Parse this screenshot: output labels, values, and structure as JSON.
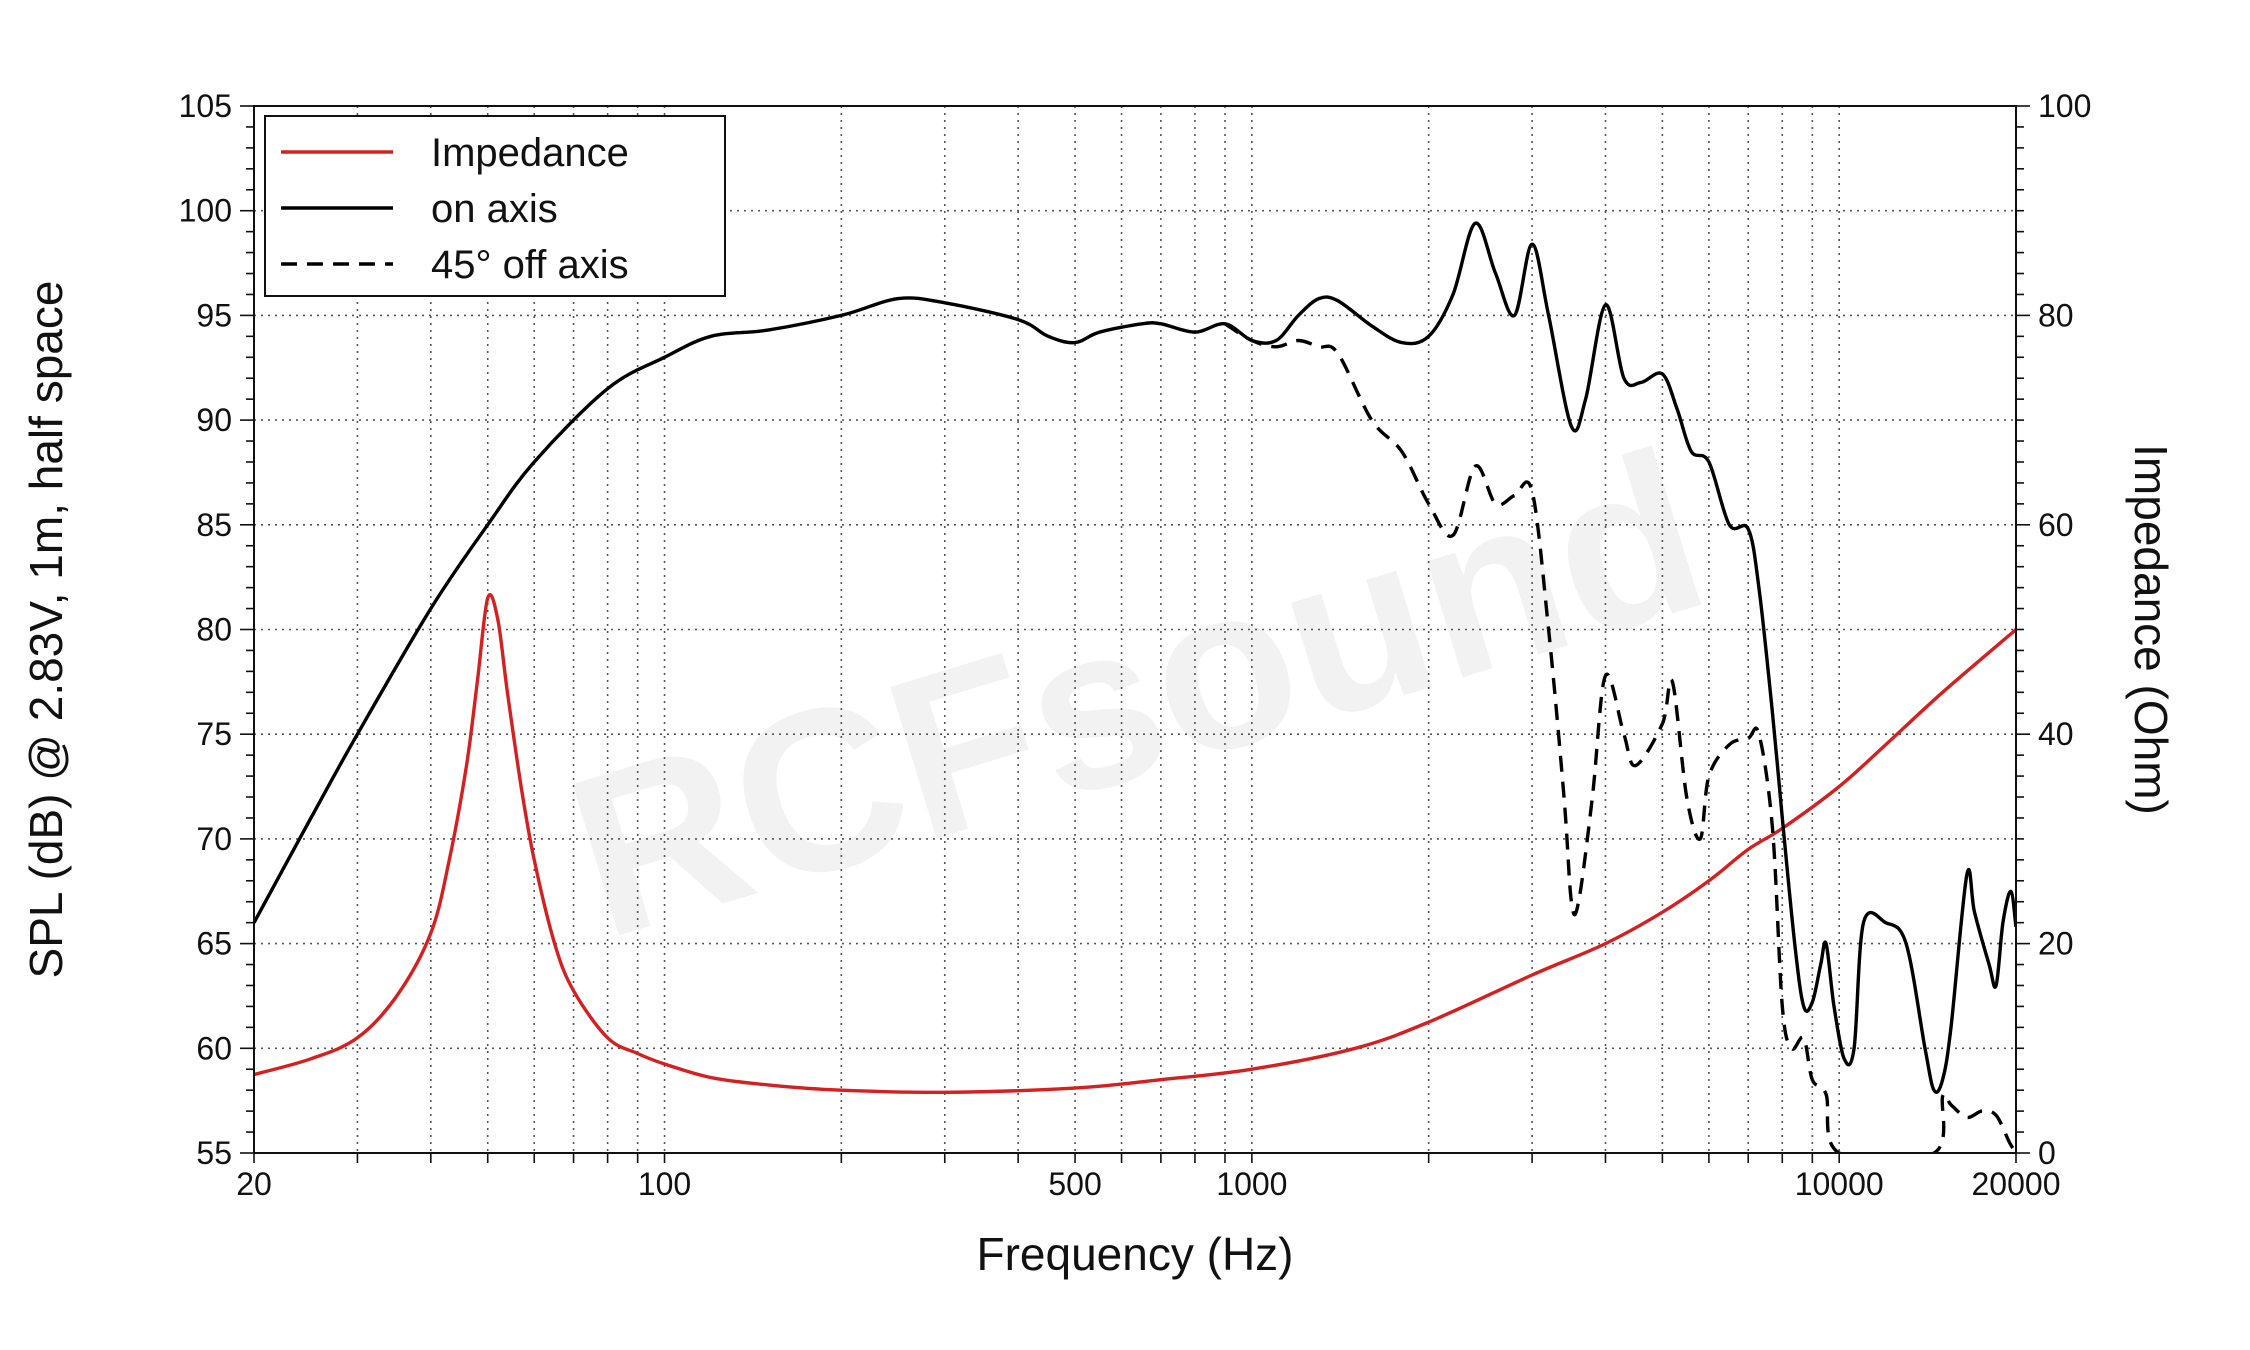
{
  "chart_data": {
    "type": "line",
    "xlabel": "Frequency (Hz)",
    "ylabel_left": "SPL (dB) @ 2.83V, 1m, half space",
    "ylabel_right": "Impedance (Ohm)",
    "xscale": "log",
    "xlim": [
      20,
      20000
    ],
    "ylim_left": [
      55,
      105
    ],
    "ylim_right": [
      0,
      100
    ],
    "x_tick_labels": [
      "20",
      "100",
      "500",
      "1000",
      "10000",
      "20000"
    ],
    "y_left_tick_labels": [
      "55",
      "60",
      "65",
      "70",
      "75",
      "80",
      "85",
      "90",
      "95",
      "100",
      "105"
    ],
    "y_right_tick_labels": [
      "0",
      "20",
      "40",
      "60",
      "80",
      "100"
    ],
    "grid": true,
    "legend_position": "top-left",
    "watermark": "RCFsound",
    "series": [
      {
        "name": "Impedance",
        "axis": "right",
        "color": "#d42020",
        "style": "solid",
        "points": [
          [
            20,
            7.5
          ],
          [
            25,
            9
          ],
          [
            30,
            11
          ],
          [
            35,
            15
          ],
          [
            40,
            21
          ],
          [
            43,
            28
          ],
          [
            46,
            37
          ],
          [
            48,
            45
          ],
          [
            50,
            53
          ],
          [
            52,
            51
          ],
          [
            54,
            44
          ],
          [
            57,
            35
          ],
          [
            60,
            28
          ],
          [
            65,
            20
          ],
          [
            70,
            15.5
          ],
          [
            80,
            11
          ],
          [
            90,
            9.5
          ],
          [
            100,
            8.5
          ],
          [
            120,
            7.2
          ],
          [
            150,
            6.5
          ],
          [
            200,
            6
          ],
          [
            300,
            5.8
          ],
          [
            500,
            6.2
          ],
          [
            700,
            7
          ],
          [
            1000,
            8
          ],
          [
            1500,
            10
          ],
          [
            2000,
            12.5
          ],
          [
            3000,
            17
          ],
          [
            4000,
            20
          ],
          [
            5000,
            23
          ],
          [
            6000,
            26
          ],
          [
            7000,
            29
          ],
          [
            8000,
            31
          ],
          [
            10000,
            35
          ],
          [
            12000,
            39
          ],
          [
            15000,
            44
          ],
          [
            20000,
            50
          ]
        ]
      },
      {
        "name": "on axis",
        "axis": "left",
        "color": "#000000",
        "style": "solid",
        "points": [
          [
            20,
            66
          ],
          [
            25,
            71
          ],
          [
            30,
            75
          ],
          [
            40,
            81
          ],
          [
            50,
            85
          ],
          [
            60,
            88
          ],
          [
            80,
            91.5
          ],
          [
            100,
            93
          ],
          [
            120,
            94
          ],
          [
            150,
            94.3
          ],
          [
            200,
            95
          ],
          [
            250,
            95.8
          ],
          [
            300,
            95.6
          ],
          [
            400,
            94.8
          ],
          [
            450,
            94
          ],
          [
            500,
            93.7
          ],
          [
            550,
            94.2
          ],
          [
            650,
            94.6
          ],
          [
            700,
            94.6
          ],
          [
            800,
            94.2
          ],
          [
            900,
            94.6
          ],
          [
            1000,
            93.8
          ],
          [
            1100,
            93.8
          ],
          [
            1200,
            95
          ],
          [
            1300,
            95.8
          ],
          [
            1400,
            95.7
          ],
          [
            1600,
            94.5
          ],
          [
            1800,
            93.7
          ],
          [
            2000,
            94
          ],
          [
            2200,
            96
          ],
          [
            2400,
            99.4
          ],
          [
            2600,
            97
          ],
          [
            2800,
            95
          ],
          [
            3000,
            98.4
          ],
          [
            3200,
            95
          ],
          [
            3500,
            89.7
          ],
          [
            3700,
            91
          ],
          [
            4000,
            95.5
          ],
          [
            4300,
            92
          ],
          [
            4600,
            91.8
          ],
          [
            5000,
            92.2
          ],
          [
            5300,
            90.5
          ],
          [
            5600,
            88.5
          ],
          [
            6000,
            88
          ],
          [
            6500,
            85
          ],
          [
            7000,
            84.8
          ],
          [
            7300,
            82
          ],
          [
            7700,
            76
          ],
          [
            8000,
            71
          ],
          [
            8400,
            65
          ],
          [
            8700,
            62
          ],
          [
            9000,
            62.2
          ],
          [
            9300,
            64
          ],
          [
            9500,
            65
          ],
          [
            9800,
            62
          ],
          [
            10200,
            59.5
          ],
          [
            10600,
            60
          ],
          [
            11000,
            66
          ],
          [
            12000,
            66
          ],
          [
            13000,
            65
          ],
          [
            14000,
            60
          ],
          [
            14500,
            58
          ],
          [
            15000,
            58.5
          ],
          [
            15500,
            61
          ],
          [
            16500,
            68.3
          ],
          [
            17000,
            66.5
          ],
          [
            18000,
            64
          ],
          [
            18500,
            63
          ],
          [
            19000,
            66
          ],
          [
            19600,
            67.5
          ],
          [
            20000,
            65.8
          ]
        ]
      },
      {
        "name": "45° off axis",
        "axis": "left",
        "color": "#000000",
        "style": "dashed",
        "points": [
          [
            900,
            94.6
          ],
          [
            1000,
            93.8
          ],
          [
            1100,
            93.5
          ],
          [
            1200,
            93.8
          ],
          [
            1300,
            93.5
          ],
          [
            1400,
            93.2
          ],
          [
            1600,
            90
          ],
          [
            1800,
            88.5
          ],
          [
            2000,
            86
          ],
          [
            2200,
            84.5
          ],
          [
            2400,
            87.8
          ],
          [
            2600,
            86
          ],
          [
            2800,
            86.4
          ],
          [
            3000,
            86.6
          ],
          [
            3200,
            80
          ],
          [
            3400,
            72
          ],
          [
            3500,
            67
          ],
          [
            3600,
            67
          ],
          [
            3800,
            72
          ],
          [
            4000,
            77.8
          ],
          [
            4300,
            75
          ],
          [
            4500,
            73.5
          ],
          [
            5000,
            75.5
          ],
          [
            5200,
            77.5
          ],
          [
            5500,
            72
          ],
          [
            5800,
            70
          ],
          [
            6000,
            73
          ],
          [
            6500,
            74.5
          ],
          [
            7000,
            74.8
          ],
          [
            7300,
            75
          ],
          [
            7700,
            70.5
          ],
          [
            8000,
            62
          ],
          [
            8300,
            60
          ],
          [
            8700,
            60.5
          ],
          [
            9000,
            58.5
          ],
          [
            9500,
            57.8
          ],
          [
            10000,
            55
          ],
          [
            14500,
            55
          ],
          [
            15000,
            57.7
          ],
          [
            15500,
            57.3
          ],
          [
            16500,
            56.7
          ],
          [
            17500,
            57
          ],
          [
            18500,
            56.8
          ],
          [
            19500,
            55.5
          ],
          [
            20000,
            55
          ]
        ]
      }
    ]
  }
}
